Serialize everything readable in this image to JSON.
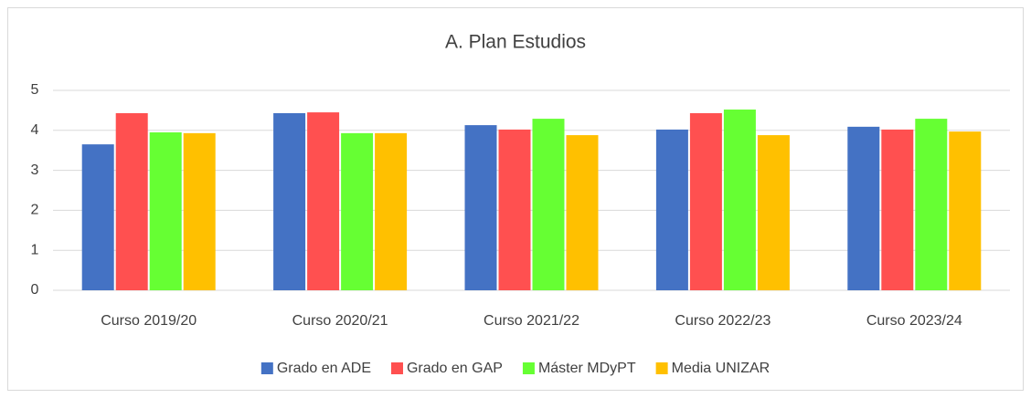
{
  "chart_data": {
    "type": "bar",
    "title": "A. Plan Estudios",
    "categories": [
      "Curso 2019/20",
      "Curso 2020/21",
      "Curso 2021/22",
      "Curso 2022/23",
      "Curso 2023/24"
    ],
    "series": [
      {
        "name": "Grado en ADE",
        "color": "#4472c4",
        "values": [
          3.65,
          4.43,
          4.13,
          4.02,
          4.09
        ]
      },
      {
        "name": "Grado en GAP",
        "color": "#ff5050",
        "values": [
          4.43,
          4.45,
          4.02,
          4.43,
          4.02
        ]
      },
      {
        "name": "Máster MDyPT",
        "color": "#66ff33",
        "values": [
          3.95,
          3.93,
          4.29,
          4.52,
          4.29
        ]
      },
      {
        "name": "Media UNIZAR",
        "color": "#ffc000",
        "values": [
          3.93,
          3.93,
          3.88,
          3.88,
          3.97
        ]
      }
    ],
    "ylim": [
      0,
      5
    ],
    "yticks": [
      0,
      1,
      2,
      3,
      4,
      5
    ],
    "grid": true,
    "legend": "bottom"
  }
}
